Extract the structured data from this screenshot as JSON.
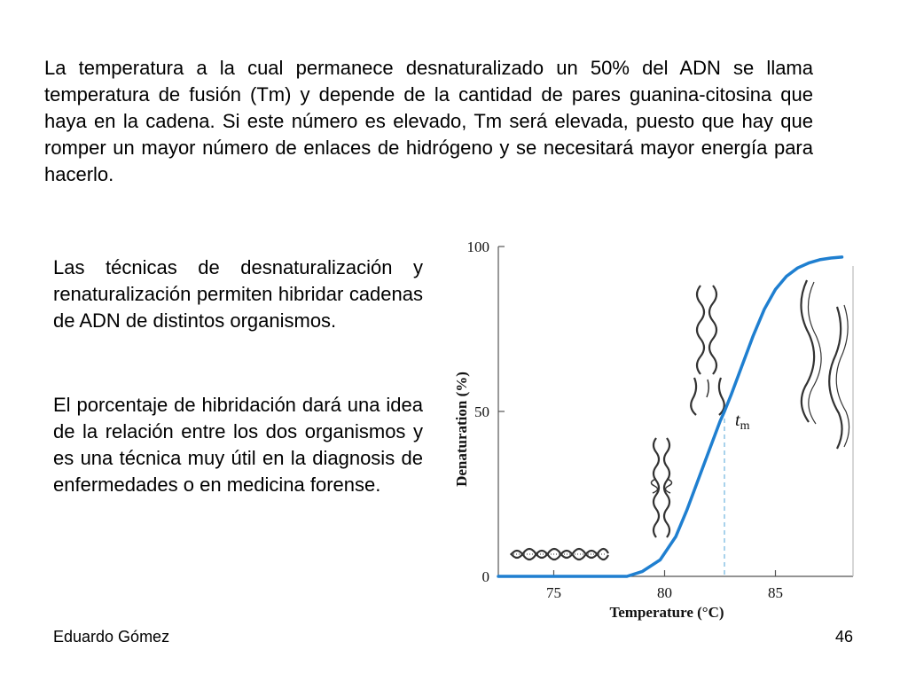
{
  "text": {
    "paragraph_top": "La temperatura a la cual permanece desnaturalizado un 50% del ADN se llama temperatura de fusión (Tm) y depende de la cantidad de pares guanina-citosina que haya en la cadena. Si este número es elevado, Tm será elevada, puesto que hay que romper un mayor número de enlaces de hidrógeno y se necesitará mayor energía para hacerlo.",
    "paragraph_left_1": "Las técnicas de desnaturalización y renaturalización permiten hibridar cadenas de ADN de distintos organismos.",
    "paragraph_left_2": "El porcentaje de hibridación dará una idea de la relación entre los dos organismos y  es una técnica muy útil en la diagnosis de enfermedades o en medicina forense."
  },
  "footer": {
    "author": "Eduardo Gómez",
    "page_number": "46"
  },
  "chart_data": {
    "type": "line",
    "title": "",
    "xlabel": "Temperature (°C)",
    "ylabel": "Denaturation (%)",
    "xlim": [
      72.5,
      88.5
    ],
    "ylim": [
      0,
      100
    ],
    "x_ticks": [
      75,
      80,
      85
    ],
    "y_ticks": [
      0,
      50,
      100
    ],
    "grid": false,
    "annotation": {
      "label": "t",
      "subscript": "m",
      "x": 82.7,
      "y": 50
    },
    "series": [
      {
        "color": "#1f7fd0",
        "x": [
          72.5,
          74,
          76,
          78,
          78.3,
          79,
          79.8,
          80.5,
          81,
          81.5,
          82,
          82.5,
          82.7,
          83,
          83.5,
          84,
          84.5,
          85,
          85.5,
          86,
          86.5,
          87,
          87.5,
          88
        ],
        "y": [
          0,
          0,
          0,
          0,
          0,
          1.5,
          5,
          12,
          20,
          29,
          38,
          47,
          50,
          55,
          64,
          73,
          81,
          87,
          91,
          93.5,
          95,
          96,
          96.5,
          96.8
        ]
      }
    ]
  }
}
